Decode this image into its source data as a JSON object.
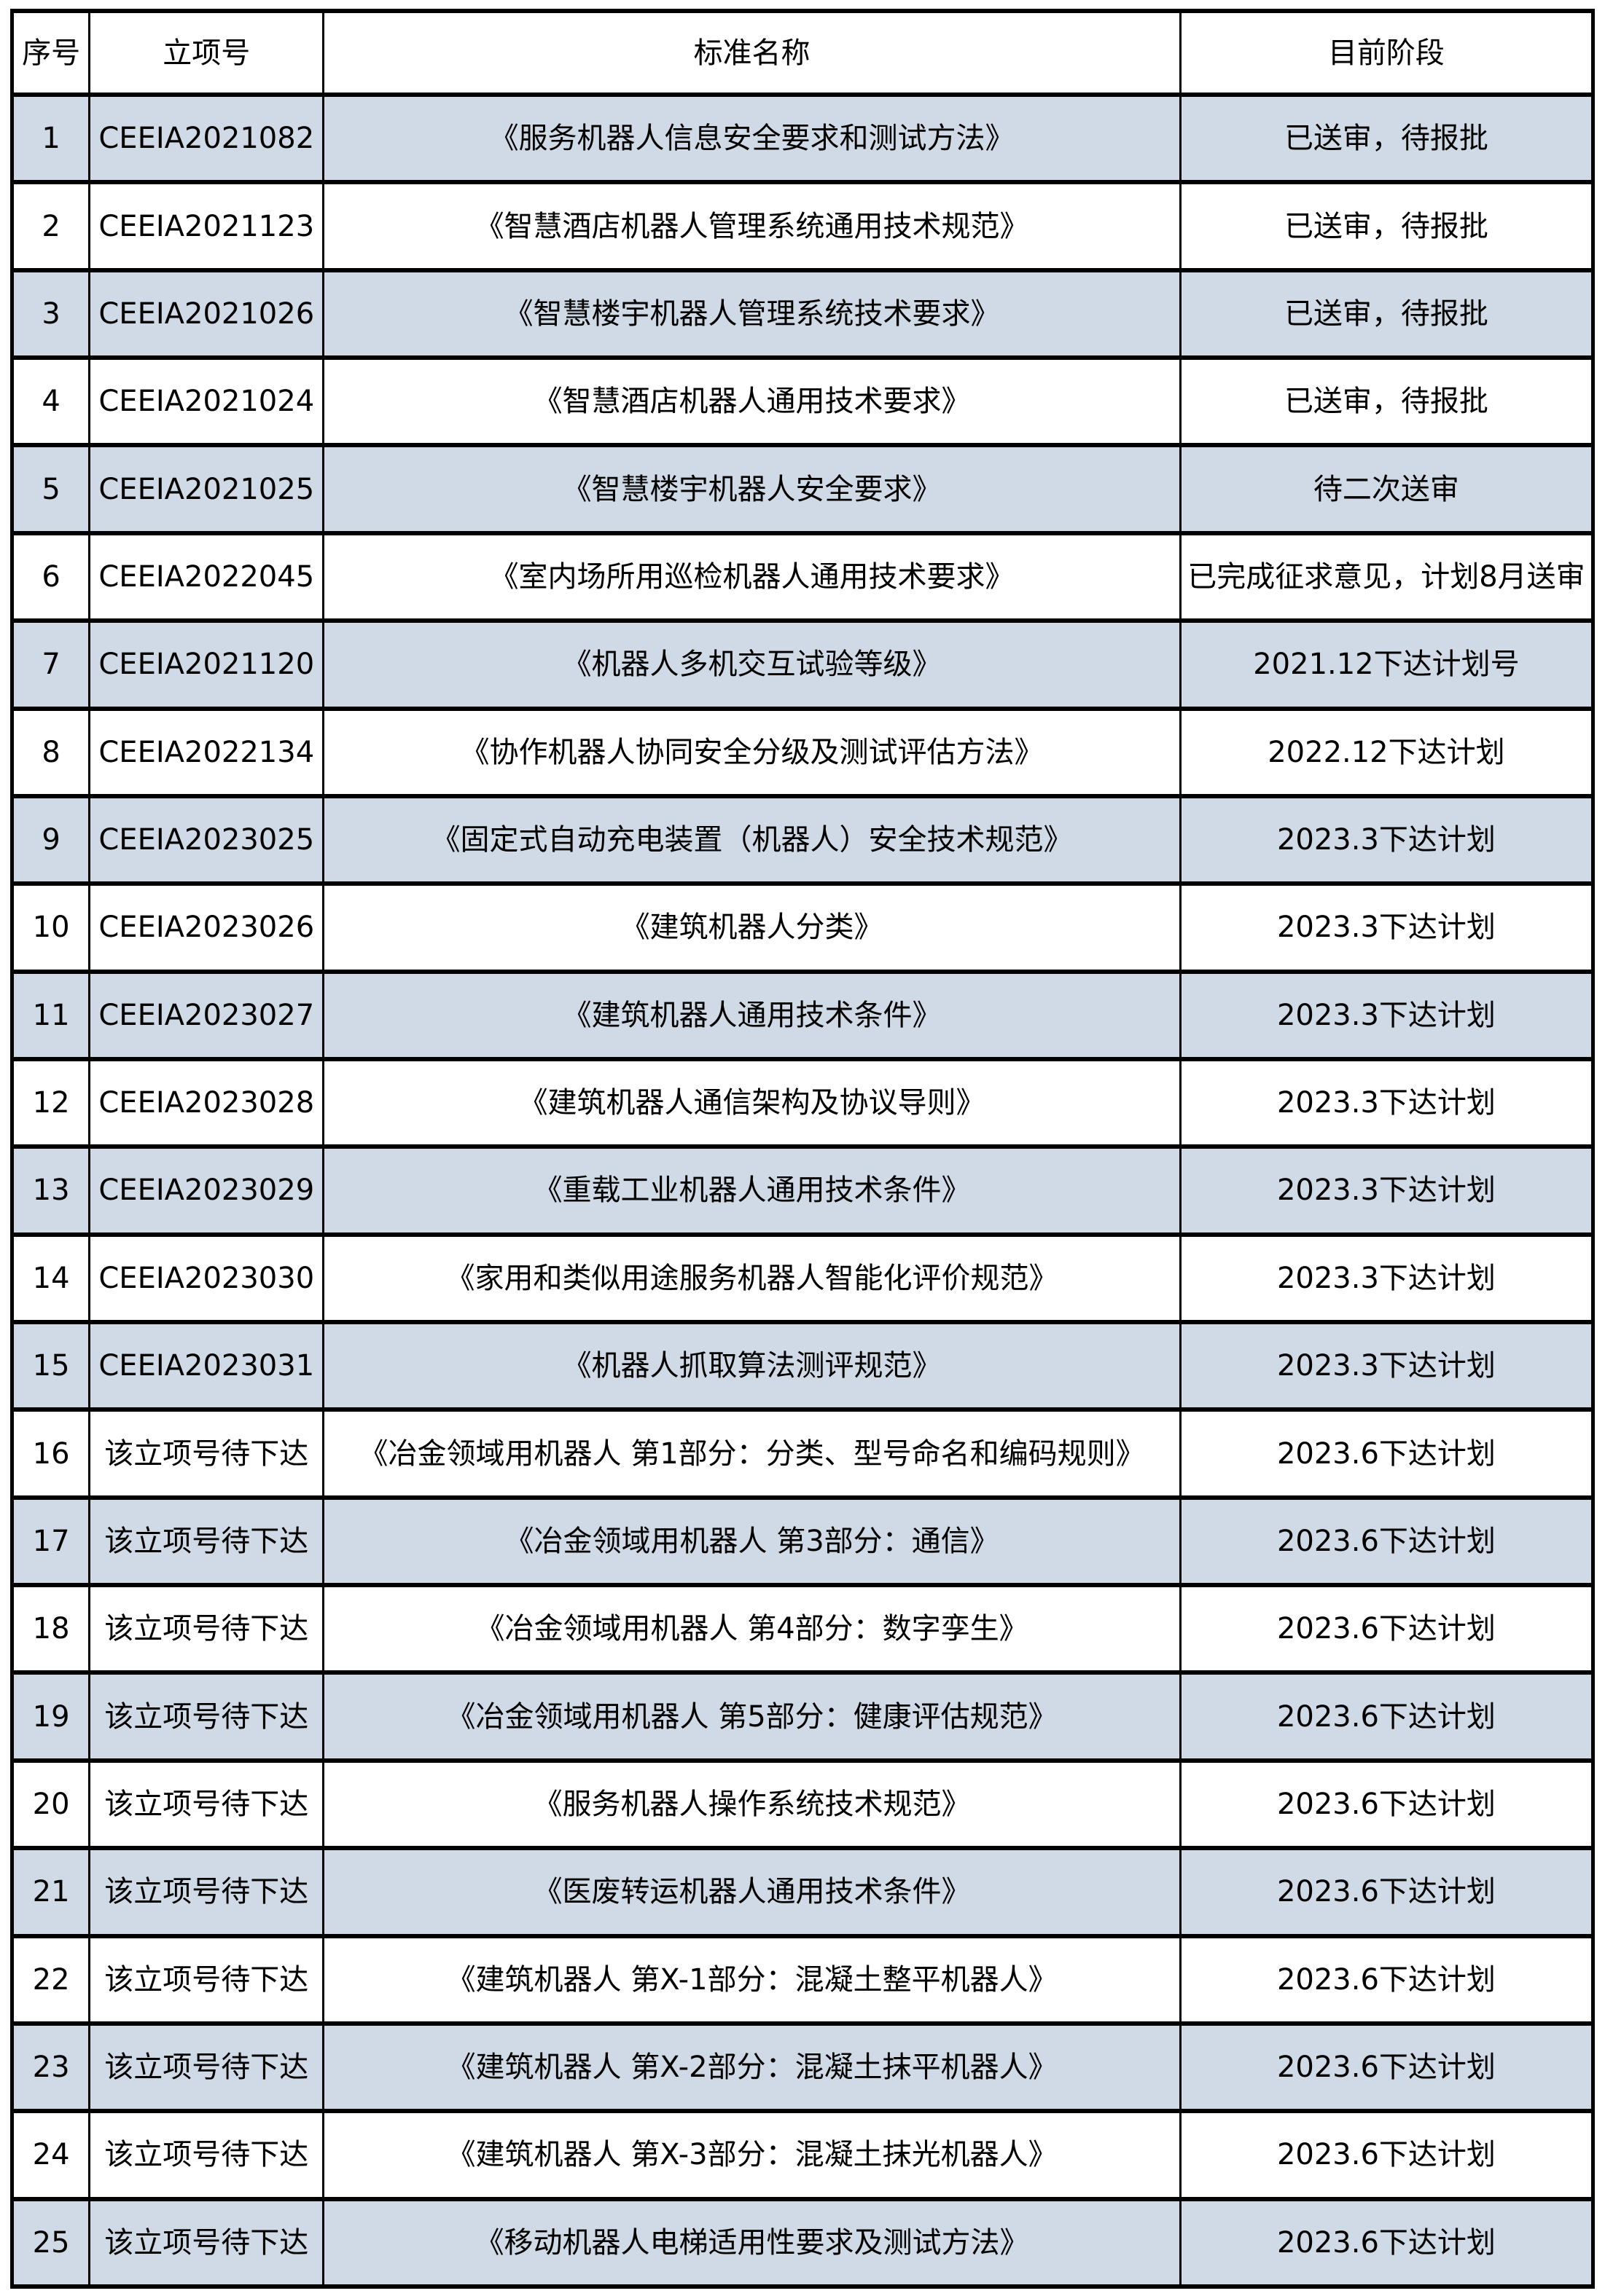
{
  "table": {
    "colors": {
      "row_alt_bg": "#d0dae6",
      "row_bg": "#ffffff",
      "border": "#000000",
      "text": "#000000"
    },
    "columns": [
      {
        "key": "no",
        "label": "序号"
      },
      {
        "key": "id",
        "label": "立项号"
      },
      {
        "key": "name",
        "label": "标准名称"
      },
      {
        "key": "stage",
        "label": "目前阶段"
      }
    ],
    "rows": [
      {
        "no": "1",
        "id": "CEEIA2021082",
        "name": "《服务机器人信息安全要求和测试方法》",
        "stage": "已送审，待报批"
      },
      {
        "no": "2",
        "id": "CEEIA2021123",
        "name": "《智慧酒店机器人管理系统通用技术规范》",
        "stage": "已送审，待报批"
      },
      {
        "no": "3",
        "id": "CEEIA2021026",
        "name": "《智慧楼宇机器人管理系统技术要求》",
        "stage": "已送审，待报批"
      },
      {
        "no": "4",
        "id": "CEEIA2021024",
        "name": "《智慧酒店机器人通用技术要求》",
        "stage": "已送审，待报批"
      },
      {
        "no": "5",
        "id": "CEEIA2021025",
        "name": "《智慧楼宇机器人安全要求》",
        "stage": "待二次送审"
      },
      {
        "no": "6",
        "id": "CEEIA2022045",
        "name": "《室内场所用巡检机器人通用技术要求》",
        "stage": "已完成征求意见，计划8月送审"
      },
      {
        "no": "7",
        "id": "CEEIA2021120",
        "name": "《机器人多机交互试验等级》",
        "stage": "2021.12下达计划号"
      },
      {
        "no": "8",
        "id": "CEEIA2022134",
        "name": "《协作机器人协同安全分级及测试评估方法》",
        "stage": "2022.12下达计划"
      },
      {
        "no": "9",
        "id": "CEEIA2023025",
        "name": "《固定式自动充电装置（机器人）安全技术规范》",
        "stage": "2023.3下达计划"
      },
      {
        "no": "10",
        "id": "CEEIA2023026",
        "name": "《建筑机器人分类》",
        "stage": "2023.3下达计划"
      },
      {
        "no": "11",
        "id": "CEEIA2023027",
        "name": "《建筑机器人通用技术条件》",
        "stage": "2023.3下达计划"
      },
      {
        "no": "12",
        "id": "CEEIA2023028",
        "name": "《建筑机器人通信架构及协议导则》",
        "stage": "2023.3下达计划"
      },
      {
        "no": "13",
        "id": "CEEIA2023029",
        "name": "《重载工业机器人通用技术条件》",
        "stage": "2023.3下达计划"
      },
      {
        "no": "14",
        "id": "CEEIA2023030",
        "name": "《家用和类似用途服务机器人智能化评价规范》",
        "stage": "2023.3下达计划"
      },
      {
        "no": "15",
        "id": "CEEIA2023031",
        "name": "《机器人抓取算法测评规范》",
        "stage": "2023.3下达计划"
      },
      {
        "no": "16",
        "id": "该立项号待下达",
        "name": "《冶金领域用机器人 第1部分：分类、型号命名和编码规则》",
        "stage": "2023.6下达计划"
      },
      {
        "no": "17",
        "id": "该立项号待下达",
        "name": "《冶金领域用机器人 第3部分：通信》",
        "stage": "2023.6下达计划"
      },
      {
        "no": "18",
        "id": "该立项号待下达",
        "name": "《冶金领域用机器人 第4部分：数字孪生》",
        "stage": "2023.6下达计划"
      },
      {
        "no": "19",
        "id": "该立项号待下达",
        "name": "《冶金领域用机器人 第5部分：健康评估规范》",
        "stage": "2023.6下达计划"
      },
      {
        "no": "20",
        "id": "该立项号待下达",
        "name": "《服务机器人操作系统技术规范》",
        "stage": "2023.6下达计划"
      },
      {
        "no": "21",
        "id": "该立项号待下达",
        "name": "《医废转运机器人通用技术条件》",
        "stage": "2023.6下达计划"
      },
      {
        "no": "22",
        "id": "该立项号待下达",
        "name": "《建筑机器人 第X-1部分：混凝土整平机器人》",
        "stage": "2023.6下达计划"
      },
      {
        "no": "23",
        "id": "该立项号待下达",
        "name": "《建筑机器人 第X-2部分：混凝土抹平机器人》",
        "stage": "2023.6下达计划"
      },
      {
        "no": "24",
        "id": "该立项号待下达",
        "name": "《建筑机器人 第X-3部分：混凝土抹光机器人》",
        "stage": "2023.6下达计划"
      },
      {
        "no": "25",
        "id": "该立项号待下达",
        "name": "《移动机器人电梯适用性要求及测试方法》",
        "stage": "2023.6下达计划"
      }
    ]
  }
}
